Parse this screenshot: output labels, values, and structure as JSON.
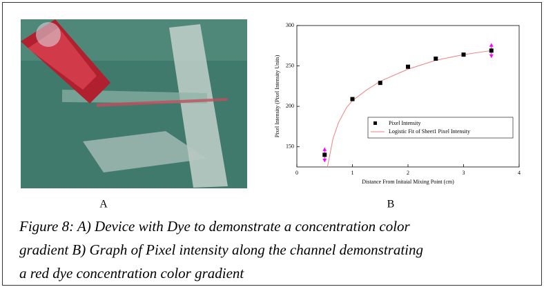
{
  "chart_data": {
    "type": "scatter",
    "xlabel": "Distance From Initaial Mixing Point (cm)",
    "ylabel": "Pixel Intensity (Pixel Intensity Units)",
    "x": [
      0.5,
      1,
      1.5,
      2,
      2.5,
      3,
      3.5
    ],
    "series": [
      {
        "name": "Pixel Intensity",
        "color": "#000000",
        "values": [
          140,
          209,
          229,
          249,
          259,
          264,
          269
        ],
        "errors": [
          9,
          null,
          null,
          null,
          null,
          null,
          9
        ],
        "error_color": "#ff00ff"
      },
      {
        "name": "Logistic Fit of Sheet1 Pixel Intensity",
        "color": "#f08080",
        "x": [
          0.55,
          0.65,
          0.75,
          0.9,
          1,
          1.25,
          1.5,
          2,
          2.5,
          3,
          3.5
        ],
        "values": [
          125,
          160,
          180,
          199,
          207,
          220,
          231,
          246,
          257,
          264,
          269
        ]
      }
    ],
    "xlim": [
      0,
      4
    ],
    "xticks": [
      0,
      1,
      2,
      3,
      4
    ],
    "ylim": [
      125,
      300
    ],
    "yticks": [
      150,
      200,
      250,
      300
    ]
  },
  "panel_labels": [
    "A",
    "B"
  ],
  "caption": [
    "Figure 8: A) Device with Dye to demonstrate a concentration color",
    "gradient B) Graph of Pixel intensity along the channel demonstrating",
    "a red dye concentration color gradient"
  ]
}
